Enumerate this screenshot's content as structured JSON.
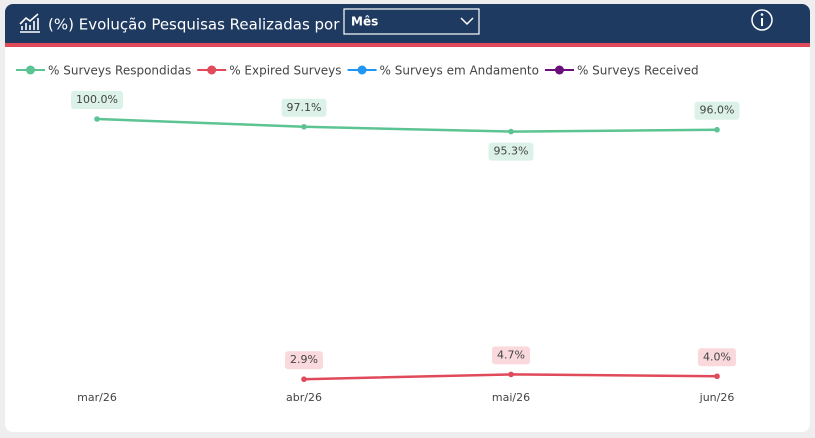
{
  "chart_data": {
    "type": "line",
    "title": "(%) Evolução Pesquisas Realizadas por",
    "categories": [
      "mar/26",
      "abr/26",
      "mai/26",
      "jun/26"
    ],
    "series": [
      {
        "name": "% Surveys Respondidas",
        "color": "#5cc392",
        "values": [
          100.0,
          97.1,
          95.3,
          96.0
        ],
        "value_labels": [
          "100.0%",
          "97.1%",
          "95.3%",
          "96.0%"
        ]
      },
      {
        "name": "% Expired Surveys",
        "color": "#e04a5a",
        "values": [
          null,
          2.9,
          4.7,
          4.0
        ],
        "value_labels": [
          null,
          "2.9%",
          "4.7%",
          "4.0%"
        ]
      },
      {
        "name": "% Surveys em Andamento",
        "color": "#2196f3",
        "values": [
          null,
          null,
          null,
          null
        ]
      },
      {
        "name": "% Surveys Received",
        "color": "#6a0f7a",
        "values": [
          null,
          null,
          null,
          null
        ]
      }
    ],
    "ylim": [
      0,
      100
    ],
    "legend": "top-left"
  },
  "filter": {
    "value": "Mês"
  }
}
